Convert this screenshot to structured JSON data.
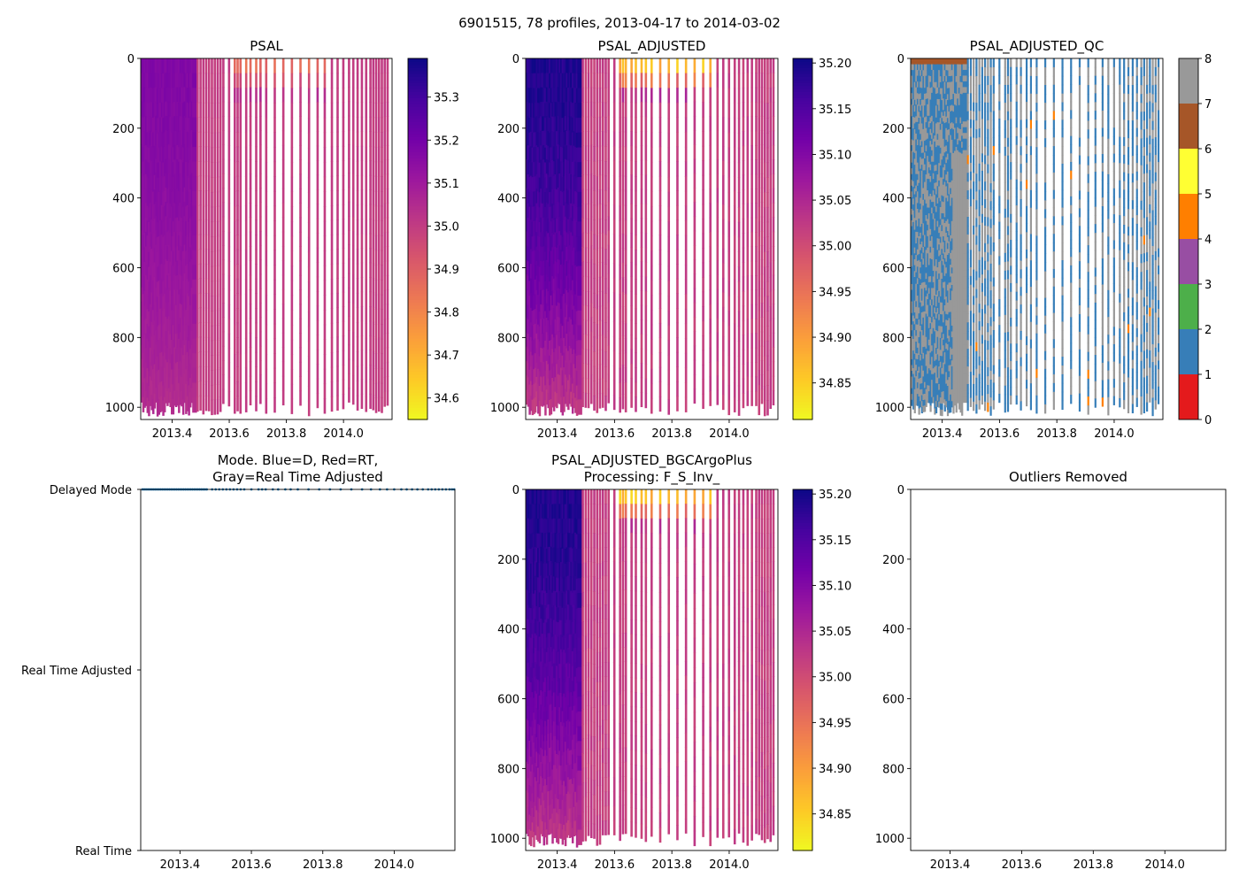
{
  "figure_title": "6901515, 78 profiles, 2013-04-17 to 2014-03-02",
  "chart_data": [
    {
      "id": "psal",
      "type": "heatmap",
      "title": "PSAL",
      "title_lines": [
        "PSAL"
      ],
      "xlim": [
        2013.29,
        2014.17
      ],
      "ylim": [
        1035,
        0
      ],
      "x_ticks": [
        2013.4,
        2013.6,
        2013.8,
        2014.0
      ],
      "x_tick_labels": [
        "2013.4",
        "2013.6",
        "2013.8",
        "2014.0"
      ],
      "y_ticks": [
        0,
        200,
        400,
        600,
        800,
        1000
      ],
      "y_tick_labels": [
        "0",
        "200",
        "400",
        "600",
        "800",
        "1000"
      ],
      "colormap": "plasma_r",
      "colorbar": {
        "min": 34.55,
        "max": 35.39,
        "ticks": [
          34.6,
          34.7,
          34.8,
          34.9,
          35.0,
          35.1,
          35.2,
          35.3
        ],
        "tick_labels": [
          "34.6",
          "34.7",
          "34.8",
          "34.9",
          "35.0",
          "35.1",
          "35.2",
          "35.3"
        ]
      },
      "dense_period": [
        2013.29,
        2013.48
      ],
      "dense_value_surface": 35.17,
      "dense_value_deep": 35.04,
      "sparse_value": 35.0,
      "surface_low_value": 34.85
    },
    {
      "id": "psal_adjusted",
      "type": "heatmap",
      "title": "PSAL_ADJUSTED",
      "title_lines": [
        "PSAL_ADJUSTED"
      ],
      "xlim": [
        2013.29,
        2014.17
      ],
      "ylim": [
        1035,
        0
      ],
      "x_ticks": [
        2013.4,
        2013.6,
        2013.8,
        2014.0
      ],
      "x_tick_labels": [
        "2013.4",
        "2013.6",
        "2013.8",
        "2014.0"
      ],
      "y_ticks": [
        0,
        200,
        400,
        600,
        800,
        1000
      ],
      "y_tick_labels": [
        "0",
        "200",
        "400",
        "600",
        "800",
        "1000"
      ],
      "colormap": "plasma_r",
      "colorbar": {
        "min": 34.81,
        "max": 35.205,
        "ticks": [
          34.85,
          34.9,
          34.95,
          35.0,
          35.05,
          35.1,
          35.15,
          35.2
        ],
        "tick_labels": [
          "34.85",
          "34.90",
          "34.95",
          "35.00",
          "35.05",
          "35.10",
          "35.15",
          "35.20"
        ]
      },
      "dense_period": [
        2013.29,
        2013.48
      ],
      "dense_value_surface": 35.19,
      "dense_value_deep": 35.02,
      "sparse_value": 35.02,
      "surface_low_value": 34.85
    },
    {
      "id": "psal_adjusted_qc",
      "type": "heatmap",
      "title": "PSAL_ADJUSTED_QC",
      "title_lines": [
        "PSAL_ADJUSTED_QC"
      ],
      "xlim": [
        2013.29,
        2014.17
      ],
      "ylim": [
        1035,
        0
      ],
      "x_ticks": [
        2013.4,
        2013.6,
        2013.8,
        2014.0
      ],
      "x_tick_labels": [
        "2013.4",
        "2013.6",
        "2013.8",
        "2014.0"
      ],
      "y_ticks": [
        0,
        200,
        400,
        600,
        800,
        1000
      ],
      "y_tick_labels": [
        "0",
        "200",
        "400",
        "600",
        "800",
        "1000"
      ],
      "colorbar": {
        "min": 0,
        "max": 8,
        "ticks": [
          0,
          1,
          2,
          3,
          4,
          5,
          6,
          7,
          8
        ],
        "tick_labels": [
          "0",
          "1",
          "2",
          "3",
          "4",
          "5",
          "6",
          "7",
          "8"
        ],
        "categories": [
          {
            "flag": 0,
            "color": "#e41a1c"
          },
          {
            "flag": 1,
            "color": "#377eb8"
          },
          {
            "flag": 2,
            "color": "#4daf4a"
          },
          {
            "flag": 3,
            "color": "#984ea3"
          },
          {
            "flag": 4,
            "color": "#ff7f00"
          },
          {
            "flag": 5,
            "color": "#ffff33"
          },
          {
            "flag": 6,
            "color": "#a65628"
          },
          {
            "flag": 7,
            "color": "#f781bf"
          },
          {
            "flag": 8,
            "color": "#999999"
          }
        ]
      },
      "dominant_flags": [
        1,
        8
      ],
      "gray_block": {
        "x": [
          2013.44,
          2013.48
        ],
        "depth": [
          260,
          1000
        ]
      }
    },
    {
      "id": "mode",
      "type": "scatter",
      "title": "Mode. Blue=D, Red=RT, Gray=Real Time Adjusted",
      "title_lines": [
        "Mode. Blue=D, Red=RT,",
        "Gray=Real Time Adjusted"
      ],
      "xlim": [
        2013.29,
        2014.17
      ],
      "x_ticks": [
        2013.4,
        2013.6,
        2013.8,
        2014.0
      ],
      "x_tick_labels": [
        "2013.4",
        "2013.6",
        "2013.8",
        "2014.0"
      ],
      "y_categories": [
        "Delayed Mode",
        "Real Time Adjusted",
        "Real Time"
      ],
      "y_values": [
        2,
        1,
        0
      ],
      "ylim": [
        0,
        2
      ],
      "series": [
        {
          "name": "D",
          "color": "#1f77b4",
          "y": 2,
          "dense_period": [
            2013.29,
            2013.48
          ]
        }
      ]
    },
    {
      "id": "psal_bgc",
      "type": "heatmap",
      "title": "PSAL_ADJUSTED_BGCArgoPlus Processing: F_S_Inv_",
      "title_lines": [
        "PSAL_ADJUSTED_BGCArgoPlus",
        "Processing: F_S_Inv_"
      ],
      "xlim": [
        2013.29,
        2014.17
      ],
      "ylim": [
        1035,
        0
      ],
      "x_ticks": [
        2013.4,
        2013.6,
        2013.8,
        2014.0
      ],
      "x_tick_labels": [
        "2013.4",
        "2013.6",
        "2013.8",
        "2014.0"
      ],
      "y_ticks": [
        0,
        200,
        400,
        600,
        800,
        1000
      ],
      "y_tick_labels": [
        "0",
        "200",
        "400",
        "600",
        "800",
        "1000"
      ],
      "colormap": "plasma_r",
      "colorbar": {
        "min": 34.81,
        "max": 35.205,
        "ticks": [
          34.85,
          34.9,
          34.95,
          35.0,
          35.05,
          35.1,
          35.15,
          35.2
        ],
        "tick_labels": [
          "34.85",
          "34.90",
          "34.95",
          "35.00",
          "35.05",
          "35.10",
          "35.15",
          "35.20"
        ]
      },
      "dense_period": [
        2013.29,
        2013.48
      ],
      "dense_value_surface": 35.19,
      "dense_value_deep": 35.02,
      "sparse_value": 35.02,
      "surface_low_value": 34.85
    },
    {
      "id": "outliers",
      "type": "scatter",
      "title": "Outliers Removed",
      "title_lines": [
        "Outliers Removed"
      ],
      "xlim": [
        2013.29,
        2014.17
      ],
      "ylim": [
        1035,
        0
      ],
      "x_ticks": [
        2013.4,
        2013.6,
        2013.8,
        2014.0
      ],
      "x_tick_labels": [
        "2013.4",
        "2013.6",
        "2013.8",
        "2014.0"
      ],
      "y_ticks": [
        0,
        200,
        400,
        600,
        800,
        1000
      ],
      "y_tick_labels": [
        "0",
        "200",
        "400",
        "600",
        "800",
        "1000"
      ],
      "series": []
    }
  ],
  "profile_times": [
    2013.295,
    2013.3,
    2013.305,
    2013.31,
    2013.315,
    2013.32,
    2013.325,
    2013.33,
    2013.335,
    2013.34,
    2013.345,
    2013.35,
    2013.355,
    2013.36,
    2013.365,
    2013.37,
    2013.375,
    2013.38,
    2013.385,
    2013.39,
    2013.395,
    2013.4,
    2013.405,
    2013.41,
    2013.415,
    2013.42,
    2013.425,
    2013.43,
    2013.435,
    2013.44,
    2013.445,
    2013.45,
    2013.455,
    2013.46,
    2013.465,
    2013.47,
    2013.475,
    2013.49,
    2013.5,
    2013.51,
    2013.52,
    2013.53,
    2013.54,
    2013.55,
    2013.56,
    2013.57,
    2013.58,
    2013.6,
    2013.62,
    2013.63,
    2013.64,
    2013.66,
    2013.675,
    2013.695,
    2013.71,
    2013.73,
    2013.76,
    2013.79,
    2013.82,
    2013.85,
    2013.88,
    2013.91,
    2013.935,
    2013.96,
    2013.98,
    2014.0,
    2014.02,
    2014.035,
    2014.05,
    2014.065,
    2014.08,
    2014.095,
    2014.105,
    2014.115,
    2014.125,
    2014.135,
    2014.145,
    2014.155
  ]
}
